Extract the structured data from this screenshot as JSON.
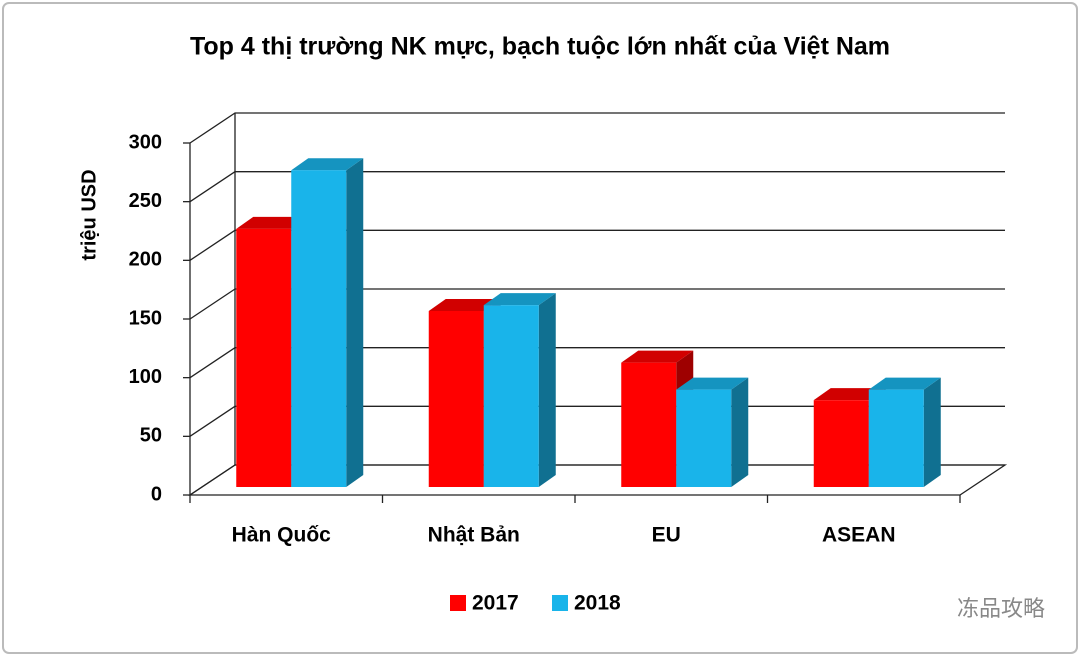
{
  "chart_data": {
    "type": "bar3d",
    "title": "Top 4 thị trường NK mực, bạch tuộc lớn nhất của Việt Nam",
    "y_label": "triệu USD",
    "categories": [
      "Hàn Quốc",
      "Nhật Bản",
      "EU",
      "ASEAN"
    ],
    "series": [
      {
        "name": "2017",
        "color": "#ff0000",
        "values": [
          220,
          150,
          106,
          74
        ]
      },
      {
        "name": "2018",
        "color": "#19b4ea",
        "values": [
          270,
          155,
          83,
          83
        ]
      }
    ],
    "ylim": [
      0,
      300
    ],
    "yticks": [
      0,
      50,
      100,
      150,
      200,
      250,
      300
    ],
    "grid": true,
    "legend": "bottom",
    "watermark": "冻品攻略"
  }
}
